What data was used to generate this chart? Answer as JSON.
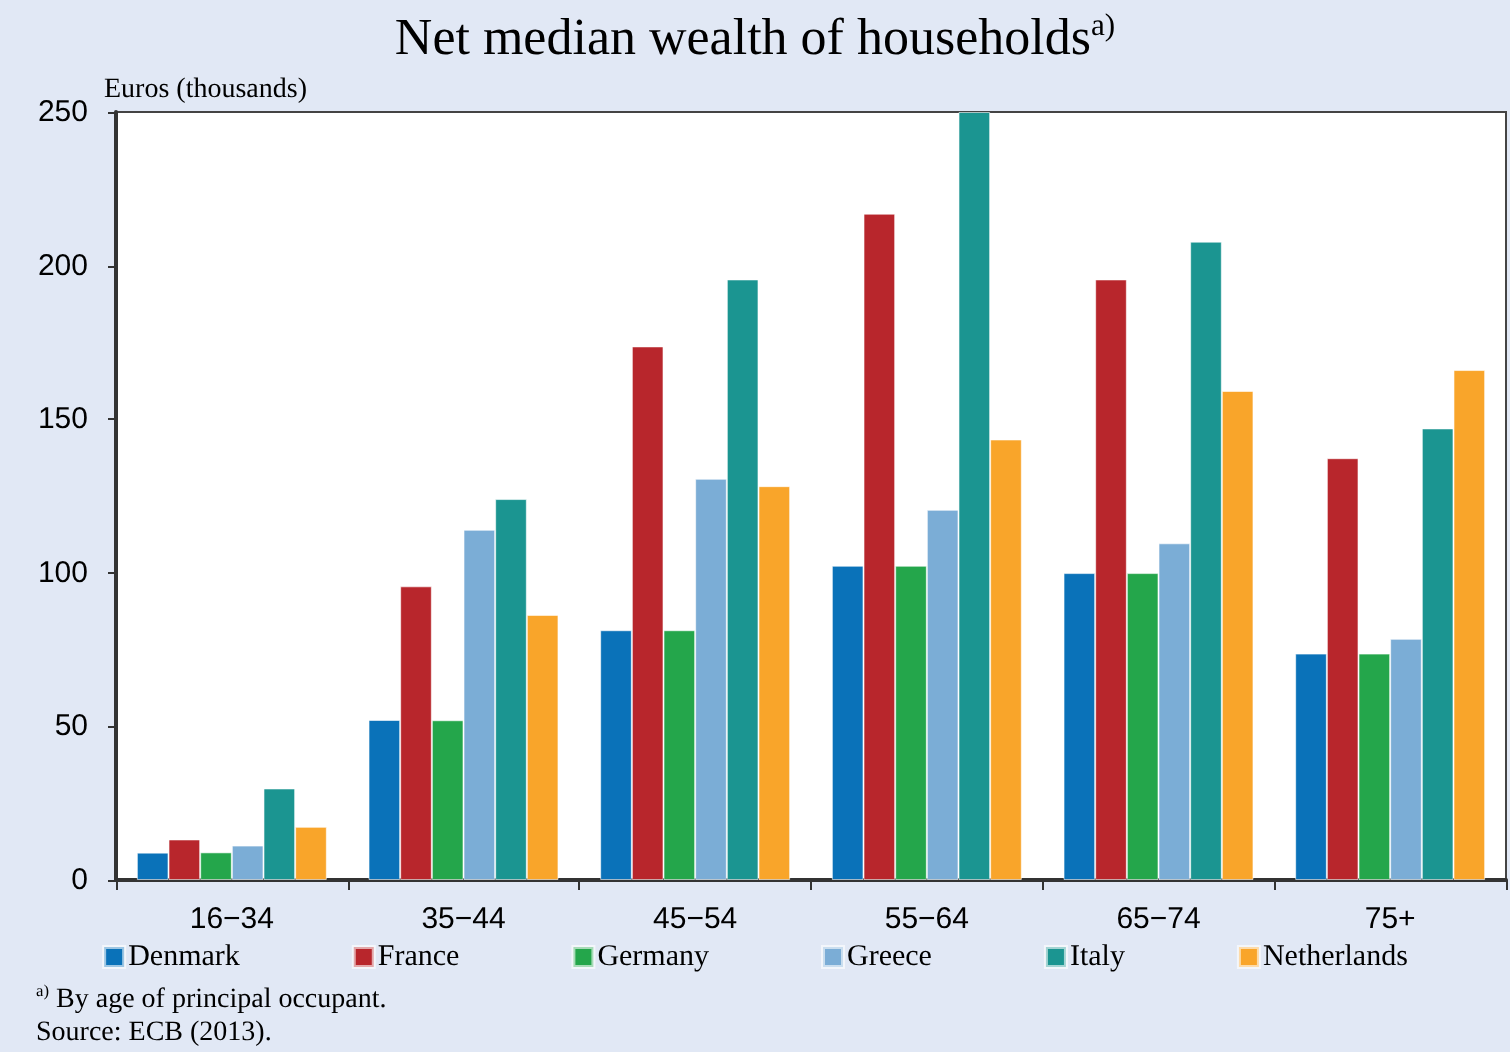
{
  "chart_data": {
    "type": "bar",
    "title": "Net median wealth of households$^{a)}$",
    "ylabel": "Euros (thousands)",
    "categories": [
      "16−34",
      "35−44",
      "45−54",
      "55−64",
      "65−74",
      "75+"
    ],
    "series": [
      {
        "name": "Denmark",
        "color": "#0a72b9",
        "values": [
          8.9,
          52.1,
          81.3,
          102.3,
          99.9,
          73.7
        ]
      },
      {
        "name": "France",
        "color": "#b8262c",
        "values": [
          13.2,
          95.6,
          173.7,
          216.9,
          195.5,
          137.3
        ]
      },
      {
        "name": "Germany",
        "color": "#24a64b",
        "values": [
          9,
          52,
          81.3,
          102.3,
          99.9,
          73.7
        ]
      },
      {
        "name": "Greece",
        "color": "#7badd6",
        "values": [
          11.2,
          114,
          130.6,
          120.5,
          109.6,
          78.5
        ]
      },
      {
        "name": "Italy",
        "color": "#1b9591",
        "values": [
          29.8,
          124,
          195.5,
          250,
          207.8,
          147
        ]
      },
      {
        "name": "Netherlands",
        "color": "#f9a52a",
        "values": [
          17.3,
          86.3,
          128.2,
          143.4,
          159.2,
          166
        ]
      }
    ],
    "ylim": [
      0,
      250
    ],
    "yticks": [
      0,
      50,
      100,
      150,
      200,
      250
    ],
    "grid": false,
    "legend": "bottom",
    "annotations": [
      "$^{a)}$ By age of principal occupant.",
      "Source: ECB (2013)."
    ]
  }
}
